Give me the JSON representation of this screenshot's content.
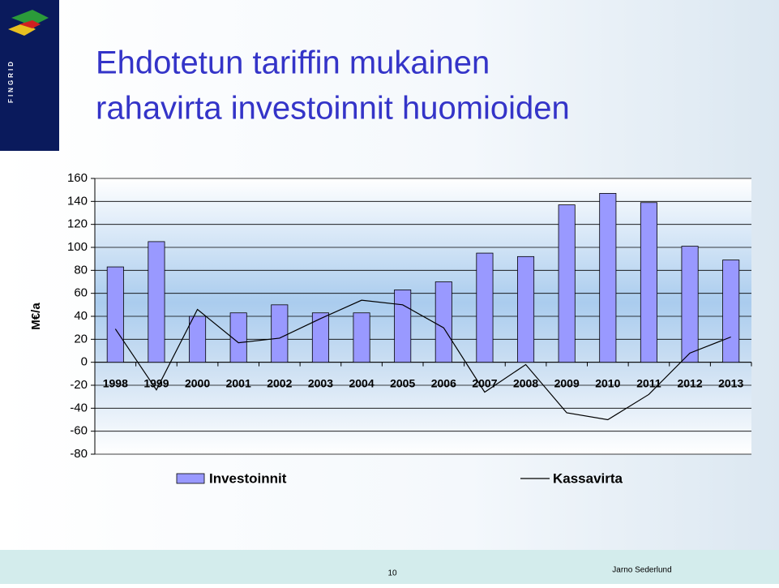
{
  "slide": {
    "logo": "FINGRID",
    "title_lines": [
      "Ehdotetun tariffin mukainen",
      "rahavirta investoinnit huomioiden"
    ],
    "page": "10",
    "author": "Jarno Sederlund"
  },
  "chart_data": {
    "type": "bar",
    "y_label": "M€/a",
    "categories": [
      "1998",
      "1999",
      "2000",
      "2001",
      "2002",
      "2003",
      "2004",
      "2005",
      "2006",
      "2007",
      "2008",
      "2009",
      "2010",
      "2011",
      "2012",
      "2013"
    ],
    "series": [
      {
        "name": "Investoinnit",
        "type": "bar",
        "color": "#9999ff",
        "values": [
          83,
          105,
          40,
          43,
          50,
          43,
          43,
          63,
          70,
          95,
          92,
          137,
          147,
          139,
          101,
          89
        ]
      },
      {
        "name": "Kassavirta",
        "type": "line",
        "color": "#000000",
        "values": [
          29,
          -24,
          46,
          17,
          21,
          38,
          54,
          50,
          30,
          -26,
          -2,
          -44,
          -50,
          -28,
          8,
          22
        ]
      }
    ],
    "ylim": [
      -80,
      160
    ],
    "yticks": [
      -80,
      -60,
      -40,
      -20,
      0,
      20,
      40,
      60,
      80,
      100,
      120,
      140,
      160
    ],
    "grid": true
  }
}
